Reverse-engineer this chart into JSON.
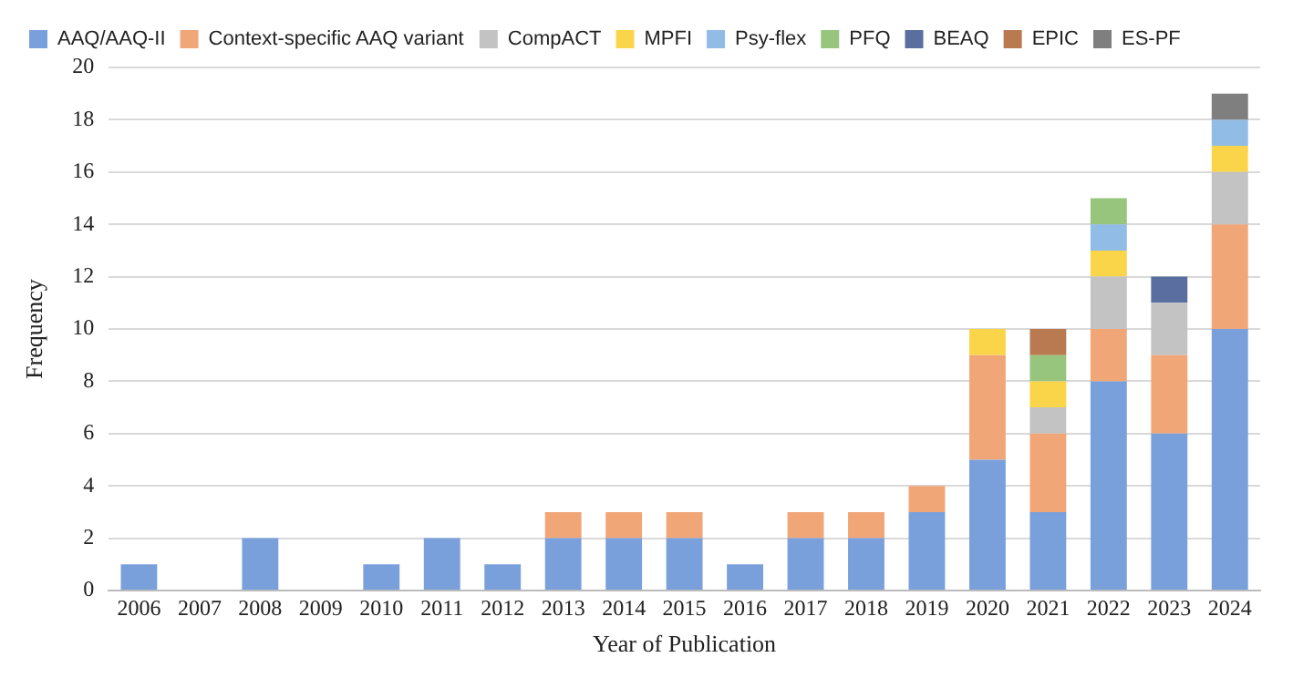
{
  "chart_data": {
    "type": "bar",
    "stacked": true,
    "xlabel": "Year of Publication",
    "ylabel": "Frequency",
    "categories": [
      "2006",
      "2007",
      "2008",
      "2009",
      "2010",
      "2011",
      "2012",
      "2013",
      "2014",
      "2015",
      "2016",
      "2017",
      "2018",
      "2019",
      "2020",
      "2021",
      "2022",
      "2023",
      "2024"
    ],
    "series": [
      {
        "name": "AAQ/AAQ-II",
        "color": "#7aa0dc",
        "values": [
          1,
          0,
          2,
          0,
          1,
          2,
          1,
          2,
          2,
          2,
          1,
          2,
          2,
          3,
          5,
          3,
          8,
          6,
          10
        ]
      },
      {
        "name": "Context-specific AAQ variant",
        "color": "#f1a678",
        "values": [
          0,
          0,
          0,
          0,
          0,
          0,
          0,
          1,
          1,
          1,
          0,
          1,
          1,
          1,
          4,
          3,
          2,
          3,
          4
        ]
      },
      {
        "name": "CompACT",
        "color": "#c3c3c3",
        "values": [
          0,
          0,
          0,
          0,
          0,
          0,
          0,
          0,
          0,
          0,
          0,
          0,
          0,
          0,
          0,
          1,
          2,
          2,
          2
        ]
      },
      {
        "name": "MPFI",
        "color": "#fad54a",
        "values": [
          0,
          0,
          0,
          0,
          0,
          0,
          0,
          0,
          0,
          0,
          0,
          0,
          0,
          0,
          1,
          1,
          1,
          0,
          1
        ]
      },
      {
        "name": "Psy-flex",
        "color": "#91bce6",
        "values": [
          0,
          0,
          0,
          0,
          0,
          0,
          0,
          0,
          0,
          0,
          0,
          0,
          0,
          0,
          0,
          0,
          1,
          0,
          1
        ]
      },
      {
        "name": "PFQ",
        "color": "#97c57d",
        "values": [
          0,
          0,
          0,
          0,
          0,
          0,
          0,
          0,
          0,
          0,
          0,
          0,
          0,
          0,
          0,
          1,
          1,
          0,
          0
        ]
      },
      {
        "name": "BEAQ",
        "color": "#5a6f9f",
        "values": [
          0,
          0,
          0,
          0,
          0,
          0,
          0,
          0,
          0,
          0,
          0,
          0,
          0,
          0,
          0,
          0,
          0,
          1,
          0
        ]
      },
      {
        "name": "EPIC",
        "color": "#b97a51",
        "values": [
          0,
          0,
          0,
          0,
          0,
          0,
          0,
          0,
          0,
          0,
          0,
          0,
          0,
          0,
          0,
          1,
          0,
          0,
          0
        ]
      },
      {
        "name": "ES-PF",
        "color": "#7f7f7f",
        "values": [
          0,
          0,
          0,
          0,
          0,
          0,
          0,
          0,
          0,
          0,
          0,
          0,
          0,
          0,
          0,
          0,
          0,
          0,
          1
        ]
      }
    ],
    "ylim": [
      0,
      20
    ],
    "yticks": [
      0,
      2,
      4,
      6,
      8,
      10,
      12,
      14,
      16,
      18,
      20
    ],
    "grid": "y",
    "legend": "top"
  }
}
